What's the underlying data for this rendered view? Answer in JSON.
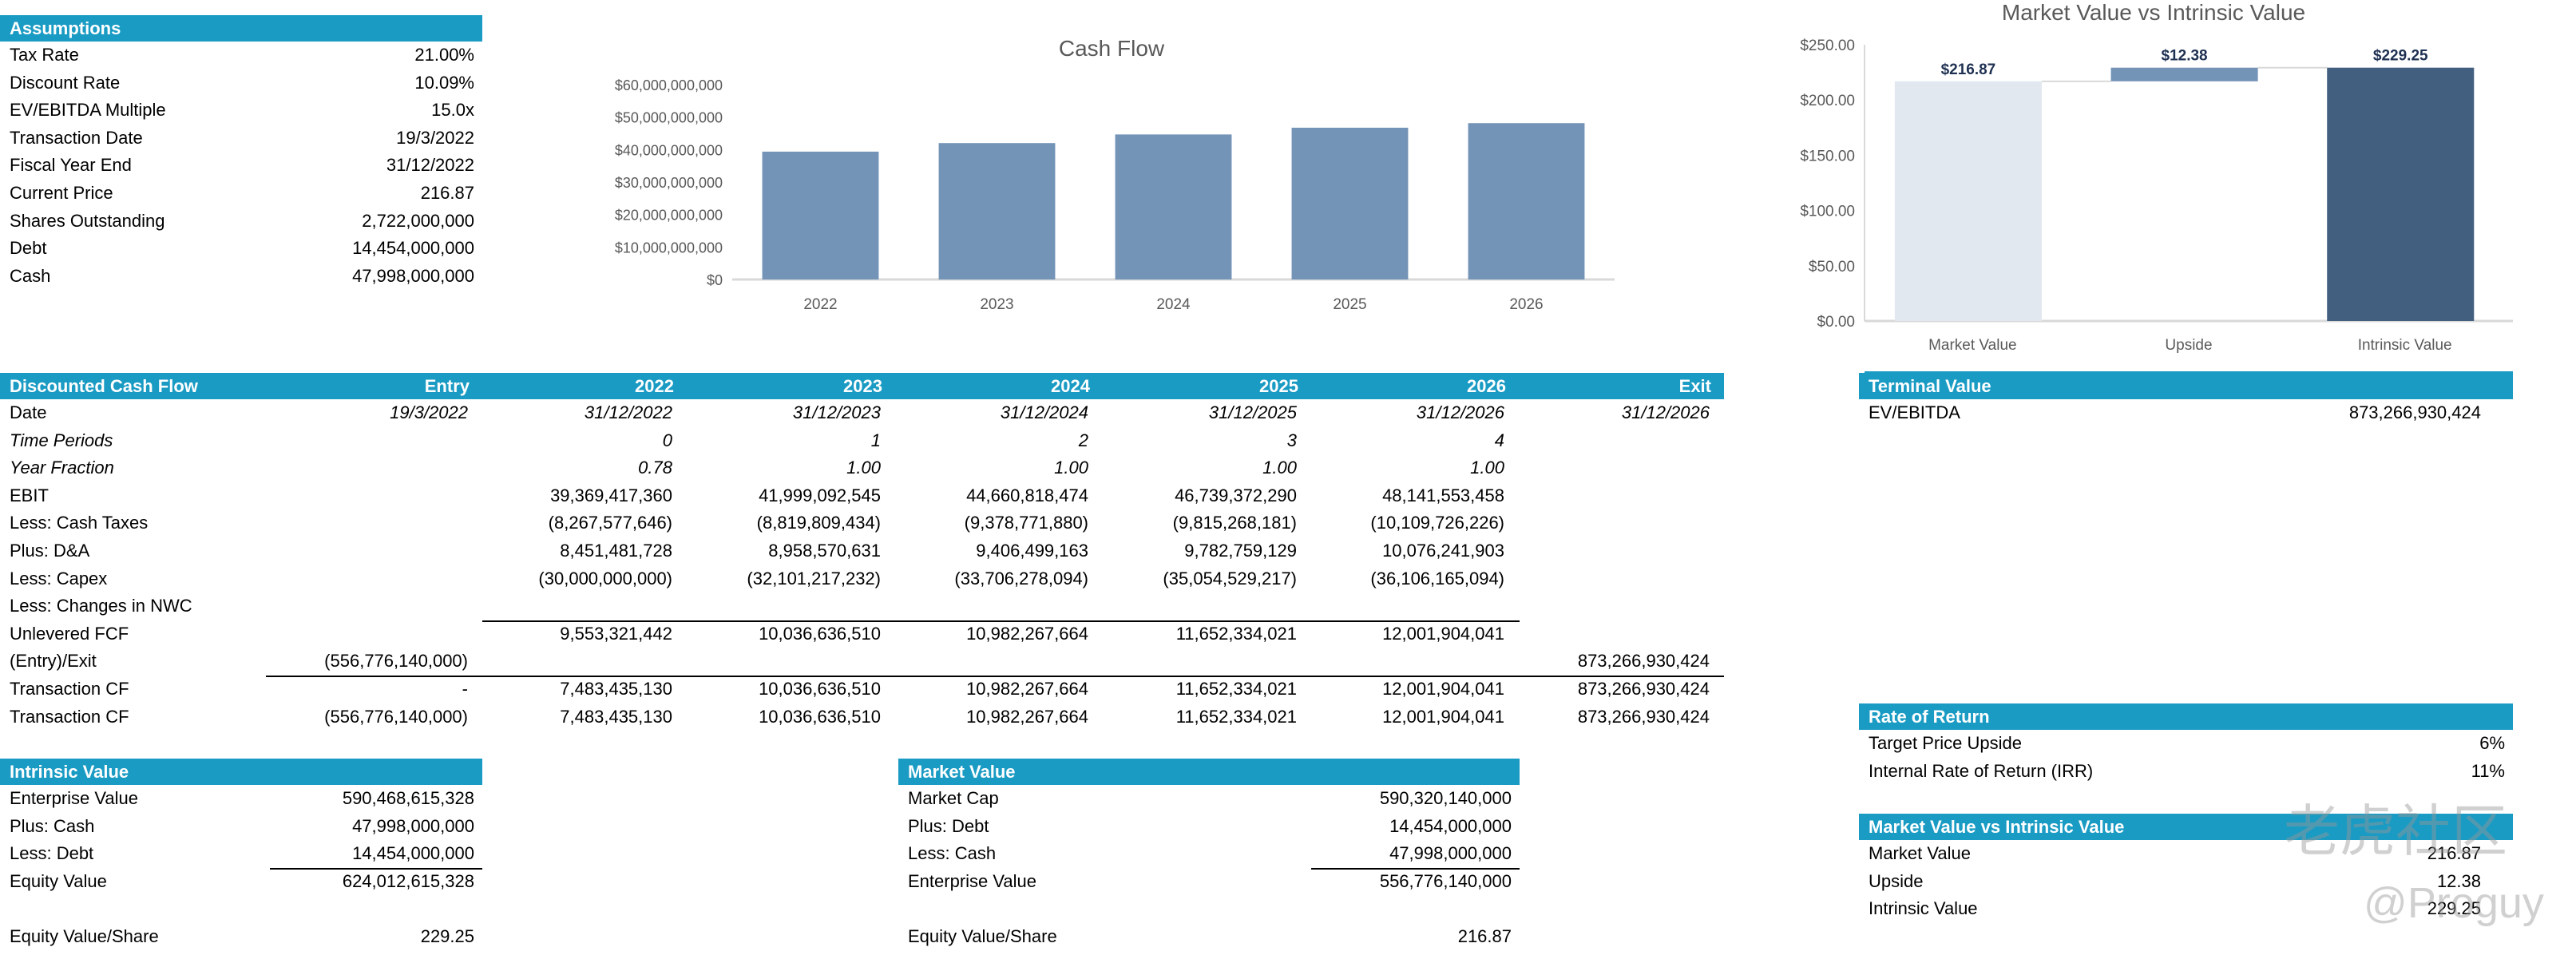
{
  "assumptions": {
    "title": "Assumptions",
    "rows": [
      {
        "label": "Tax Rate",
        "value": "21.00%"
      },
      {
        "label": "Discount Rate",
        "value": "10.09%"
      },
      {
        "label": "EV/EBITDA Multiple",
        "value": "15.0x"
      },
      {
        "label": "Transaction Date",
        "value": "19/3/2022"
      },
      {
        "label": "Fiscal Year End",
        "value": "31/12/2022"
      },
      {
        "label": "Current Price",
        "value": "216.87"
      },
      {
        "label": "Shares Outstanding",
        "value": "2,722,000,000"
      },
      {
        "label": "Debt",
        "value": "14,454,000,000"
      },
      {
        "label": "Cash",
        "value": "47,998,000,000"
      }
    ]
  },
  "dcf": {
    "headers": [
      "Discounted Cash Flow",
      "Entry",
      "2022",
      "2023",
      "2024",
      "2025",
      "2026",
      "Exit"
    ],
    "rows": [
      {
        "label": "Date",
        "italic": true,
        "cells": [
          "19/3/2022",
          "31/12/2022",
          "31/12/2023",
          "31/12/2024",
          "31/12/2025",
          "31/12/2026",
          "31/12/2026"
        ]
      },
      {
        "label": "Time Periods",
        "italic": true,
        "labelItalic": true,
        "cells": [
          "",
          "0",
          "1",
          "2",
          "3",
          "4",
          ""
        ]
      },
      {
        "label": "Year Fraction",
        "italic": true,
        "labelItalic": true,
        "cells": [
          "",
          "0.78",
          "1.00",
          "1.00",
          "1.00",
          "1.00",
          ""
        ]
      },
      {
        "label": "EBIT",
        "cells": [
          "",
          "39,369,417,360",
          "41,999,092,545",
          "44,660,818,474",
          "46,739,372,290",
          "48,141,553,458",
          ""
        ]
      },
      {
        "label": "Less: Cash Taxes",
        "cells": [
          "",
          "(8,267,577,646)",
          "(8,819,809,434)",
          "(9,378,771,880)",
          "(9,815,268,181)",
          "(10,109,726,226)",
          ""
        ]
      },
      {
        "label": "Plus: D&A",
        "cells": [
          "",
          "8,451,481,728",
          "8,958,570,631",
          "9,406,499,163",
          "9,782,759,129",
          "10,076,241,903",
          ""
        ]
      },
      {
        "label": "Less: Capex",
        "cells": [
          "",
          "(30,000,000,000)",
          "(32,101,217,232)",
          "(33,706,278,094)",
          "(35,054,529,217)",
          "(36,106,165,094)",
          ""
        ]
      },
      {
        "label": "Less: Changes in NWC",
        "cells": [
          "",
          "",
          "",
          "",
          "",
          "",
          ""
        ]
      },
      {
        "label": "Unlevered FCF",
        "cells": [
          "",
          "9,553,321,442",
          "10,036,636,510",
          "10,982,267,664",
          "11,652,334,021",
          "12,001,904,041",
          ""
        ]
      },
      {
        "label": "(Entry)/Exit",
        "cells": [
          "(556,776,140,000)",
          "",
          "",
          "",
          "",
          "",
          "873,266,930,424"
        ]
      },
      {
        "label": "Transaction CF",
        "cells": [
          "-",
          "7,483,435,130",
          "10,036,636,510",
          "10,982,267,664",
          "11,652,334,021",
          "12,001,904,041",
          "873,266,930,424"
        ]
      },
      {
        "label": "Transaction CF",
        "cells": [
          "(556,776,140,000)",
          "7,483,435,130",
          "10,036,636,510",
          "10,982,267,664",
          "11,652,334,021",
          "12,001,904,041",
          "873,266,930,424"
        ]
      }
    ]
  },
  "intrinsic": {
    "title": "Intrinsic Value",
    "rows": [
      {
        "label": "Enterprise Value",
        "value": "590,468,615,328"
      },
      {
        "label": "Plus: Cash",
        "value": "47,998,000,000"
      },
      {
        "label": "Less: Debt",
        "value": "14,454,000,000"
      },
      {
        "label": "Equity Value",
        "value": "624,012,615,328"
      },
      {
        "label": "",
        "value": ""
      },
      {
        "label": "Equity Value/Share",
        "value": "229.25"
      }
    ]
  },
  "market": {
    "title": "Market Value",
    "rows": [
      {
        "label": "Market Cap",
        "value": "590,320,140,000"
      },
      {
        "label": "Plus: Debt",
        "value": "14,454,000,000"
      },
      {
        "label": "Less: Cash",
        "value": "47,998,000,000"
      },
      {
        "label": "Enterprise Value",
        "value": "556,776,140,000"
      },
      {
        "label": "",
        "value": ""
      },
      {
        "label": "Equity Value/Share",
        "value": "216.87"
      }
    ]
  },
  "terminal": {
    "title": "Terminal Value",
    "rows": [
      {
        "label": "EV/EBITDA",
        "value": "873,266,930,424"
      }
    ]
  },
  "rate_of_return": {
    "title": "Rate of Return",
    "rows": [
      {
        "label": "Target Price Upside",
        "value": "6%"
      },
      {
        "label": "Internal Rate of Return (IRR)",
        "value": "11%"
      }
    ]
  },
  "mv_vs_iv": {
    "title": "Market Value vs Intrinsic Value",
    "rows": [
      {
        "label": "Market Value",
        "value": "216.87"
      },
      {
        "label": "Upside",
        "value": "12.38"
      },
      {
        "label": "Intrinsic Value",
        "value": "229.25"
      }
    ]
  },
  "watermark": {
    "text": "老虎社区",
    "handle": "@Proguy"
  },
  "colors": {
    "header": "#1a9bc4",
    "bar": "#7393b7",
    "market_bar": "#e1e8f0",
    "upside_bar": "#7393b7",
    "intrinsic_bar": "#435f7f"
  },
  "chart_data": [
    {
      "type": "bar",
      "title": "Cash Flow",
      "categories": [
        "2022",
        "2023",
        "2024",
        "2025",
        "2026"
      ],
      "values": [
        39369417360,
        41999092545,
        44660818474,
        46739372290,
        48141553458
      ],
      "ylim": [
        0,
        60000000000
      ],
      "yticks": [
        "$0",
        "$10,000,000,000",
        "$20,000,000,000",
        "$30,000,000,000",
        "$40,000,000,000",
        "$50,000,000,000",
        "$60,000,000,000"
      ],
      "grid": false
    },
    {
      "type": "waterfall",
      "title": "Market Value vs Intrinsic Value",
      "categories": [
        "Market Value",
        "Upside",
        "Intrinsic Value"
      ],
      "values": [
        216.87,
        12.38,
        229.25
      ],
      "data_labels": [
        "$216.87",
        "$12.38",
        "$229.25"
      ],
      "ylim": [
        0,
        250
      ],
      "yticks": [
        "$0.00",
        "$50.00",
        "$100.00",
        "$150.00",
        "$200.00",
        "$250.00"
      ],
      "grid": false
    }
  ]
}
